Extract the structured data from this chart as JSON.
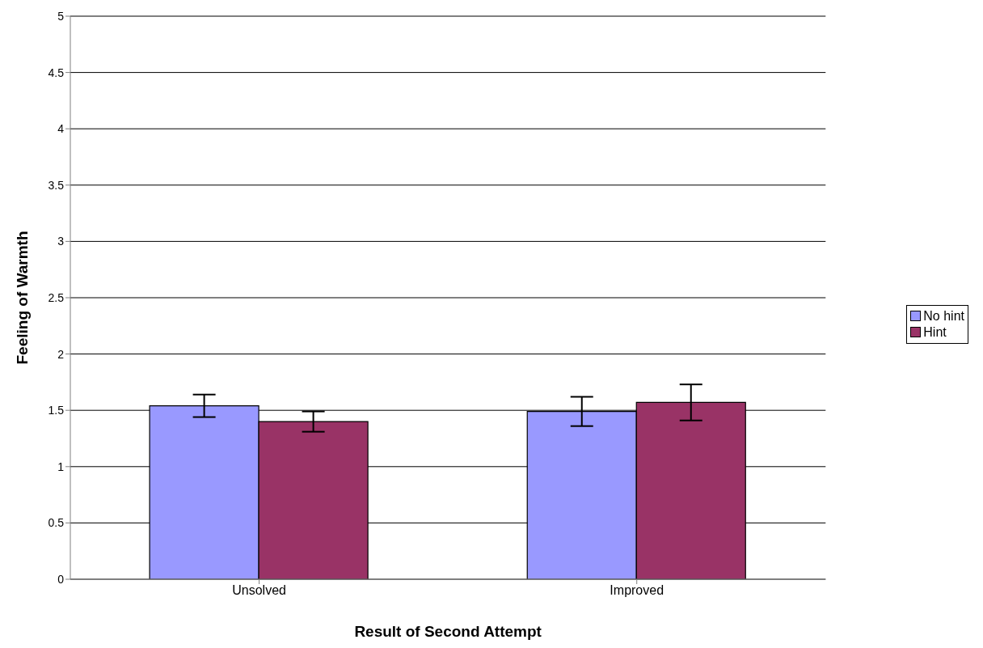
{
  "chart_data": {
    "type": "bar",
    "xlabel": "Result of Second Attempt",
    "ylabel": "Feeling of Warmth",
    "categories": [
      "Unsolved",
      "Improved"
    ],
    "series": [
      {
        "name": "No hint",
        "color": "#9999ff",
        "values": [
          1.54,
          1.49
        ],
        "errors": [
          0.1,
          0.13
        ]
      },
      {
        "name": "Hint",
        "color": "#993366",
        "values": [
          1.4,
          1.57
        ],
        "errors": [
          0.09,
          0.16
        ]
      }
    ],
    "ylim": [
      0,
      5
    ],
    "yticks": [
      0,
      0.5,
      1,
      1.5,
      2,
      2.5,
      3,
      3.5,
      4,
      4.5,
      5
    ],
    "grid": "y",
    "legend": "right"
  }
}
